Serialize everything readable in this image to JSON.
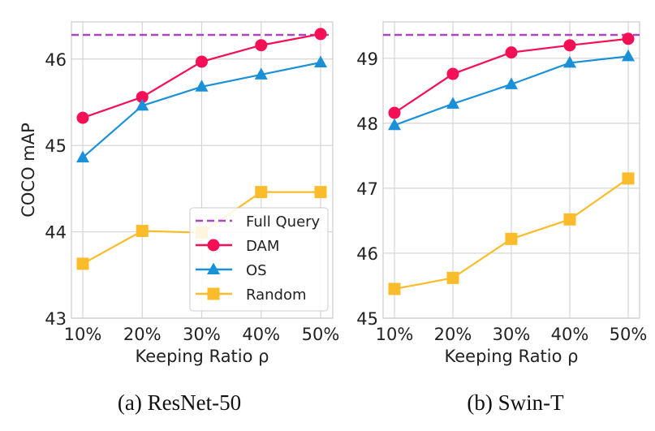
{
  "chart_data": [
    {
      "type": "line",
      "title": "(a) ResNet-50",
      "xlabel": "Keeping Ratio ρ",
      "ylabel": "COCO mAP",
      "categories": [
        "10%",
        "20%",
        "30%",
        "40%",
        "50%"
      ],
      "ylim": [
        43,
        46.43
      ],
      "yticks": [
        43,
        44,
        45,
        46
      ],
      "grid": true,
      "legend": "bottom-right",
      "reference_line": {
        "name": "Full Query",
        "value": 46.28,
        "color": "#ab47bc",
        "style": "dashed"
      },
      "series": [
        {
          "name": "DAM",
          "values": [
            45.32,
            45.56,
            45.97,
            46.16,
            46.29
          ],
          "color": "#f50f57",
          "marker": "circle"
        },
        {
          "name": "OS",
          "values": [
            44.86,
            45.46,
            45.68,
            45.82,
            45.96
          ],
          "color": "#1a90d9",
          "marker": "triangle"
        },
        {
          "name": "Random",
          "values": [
            43.63,
            44.01,
            43.99,
            44.46,
            44.46
          ],
          "color": "#fbbc2b",
          "marker": "square"
        }
      ]
    },
    {
      "type": "line",
      "title": "(b) Swin-T",
      "xlabel": "Keeping Ratio ρ",
      "ylabel": "",
      "categories": [
        "10%",
        "20%",
        "30%",
        "40%",
        "50%"
      ],
      "ylim": [
        45,
        49.56
      ],
      "yticks": [
        45,
        46,
        47,
        48,
        49
      ],
      "grid": true,
      "legend": "none",
      "reference_line": {
        "name": "Full Query",
        "value": 49.36,
        "color": "#ab47bc",
        "style": "dashed"
      },
      "series": [
        {
          "name": "DAM",
          "values": [
            48.16,
            48.76,
            49.09,
            49.2,
            49.3
          ],
          "color": "#f50f57",
          "marker": "circle"
        },
        {
          "name": "OS",
          "values": [
            47.97,
            48.3,
            48.6,
            48.93,
            49.03
          ],
          "color": "#1a90d9",
          "marker": "triangle"
        },
        {
          "name": "Random",
          "values": [
            45.45,
            45.62,
            46.22,
            46.52,
            47.15
          ],
          "color": "#fbbc2b",
          "marker": "square"
        }
      ]
    }
  ]
}
